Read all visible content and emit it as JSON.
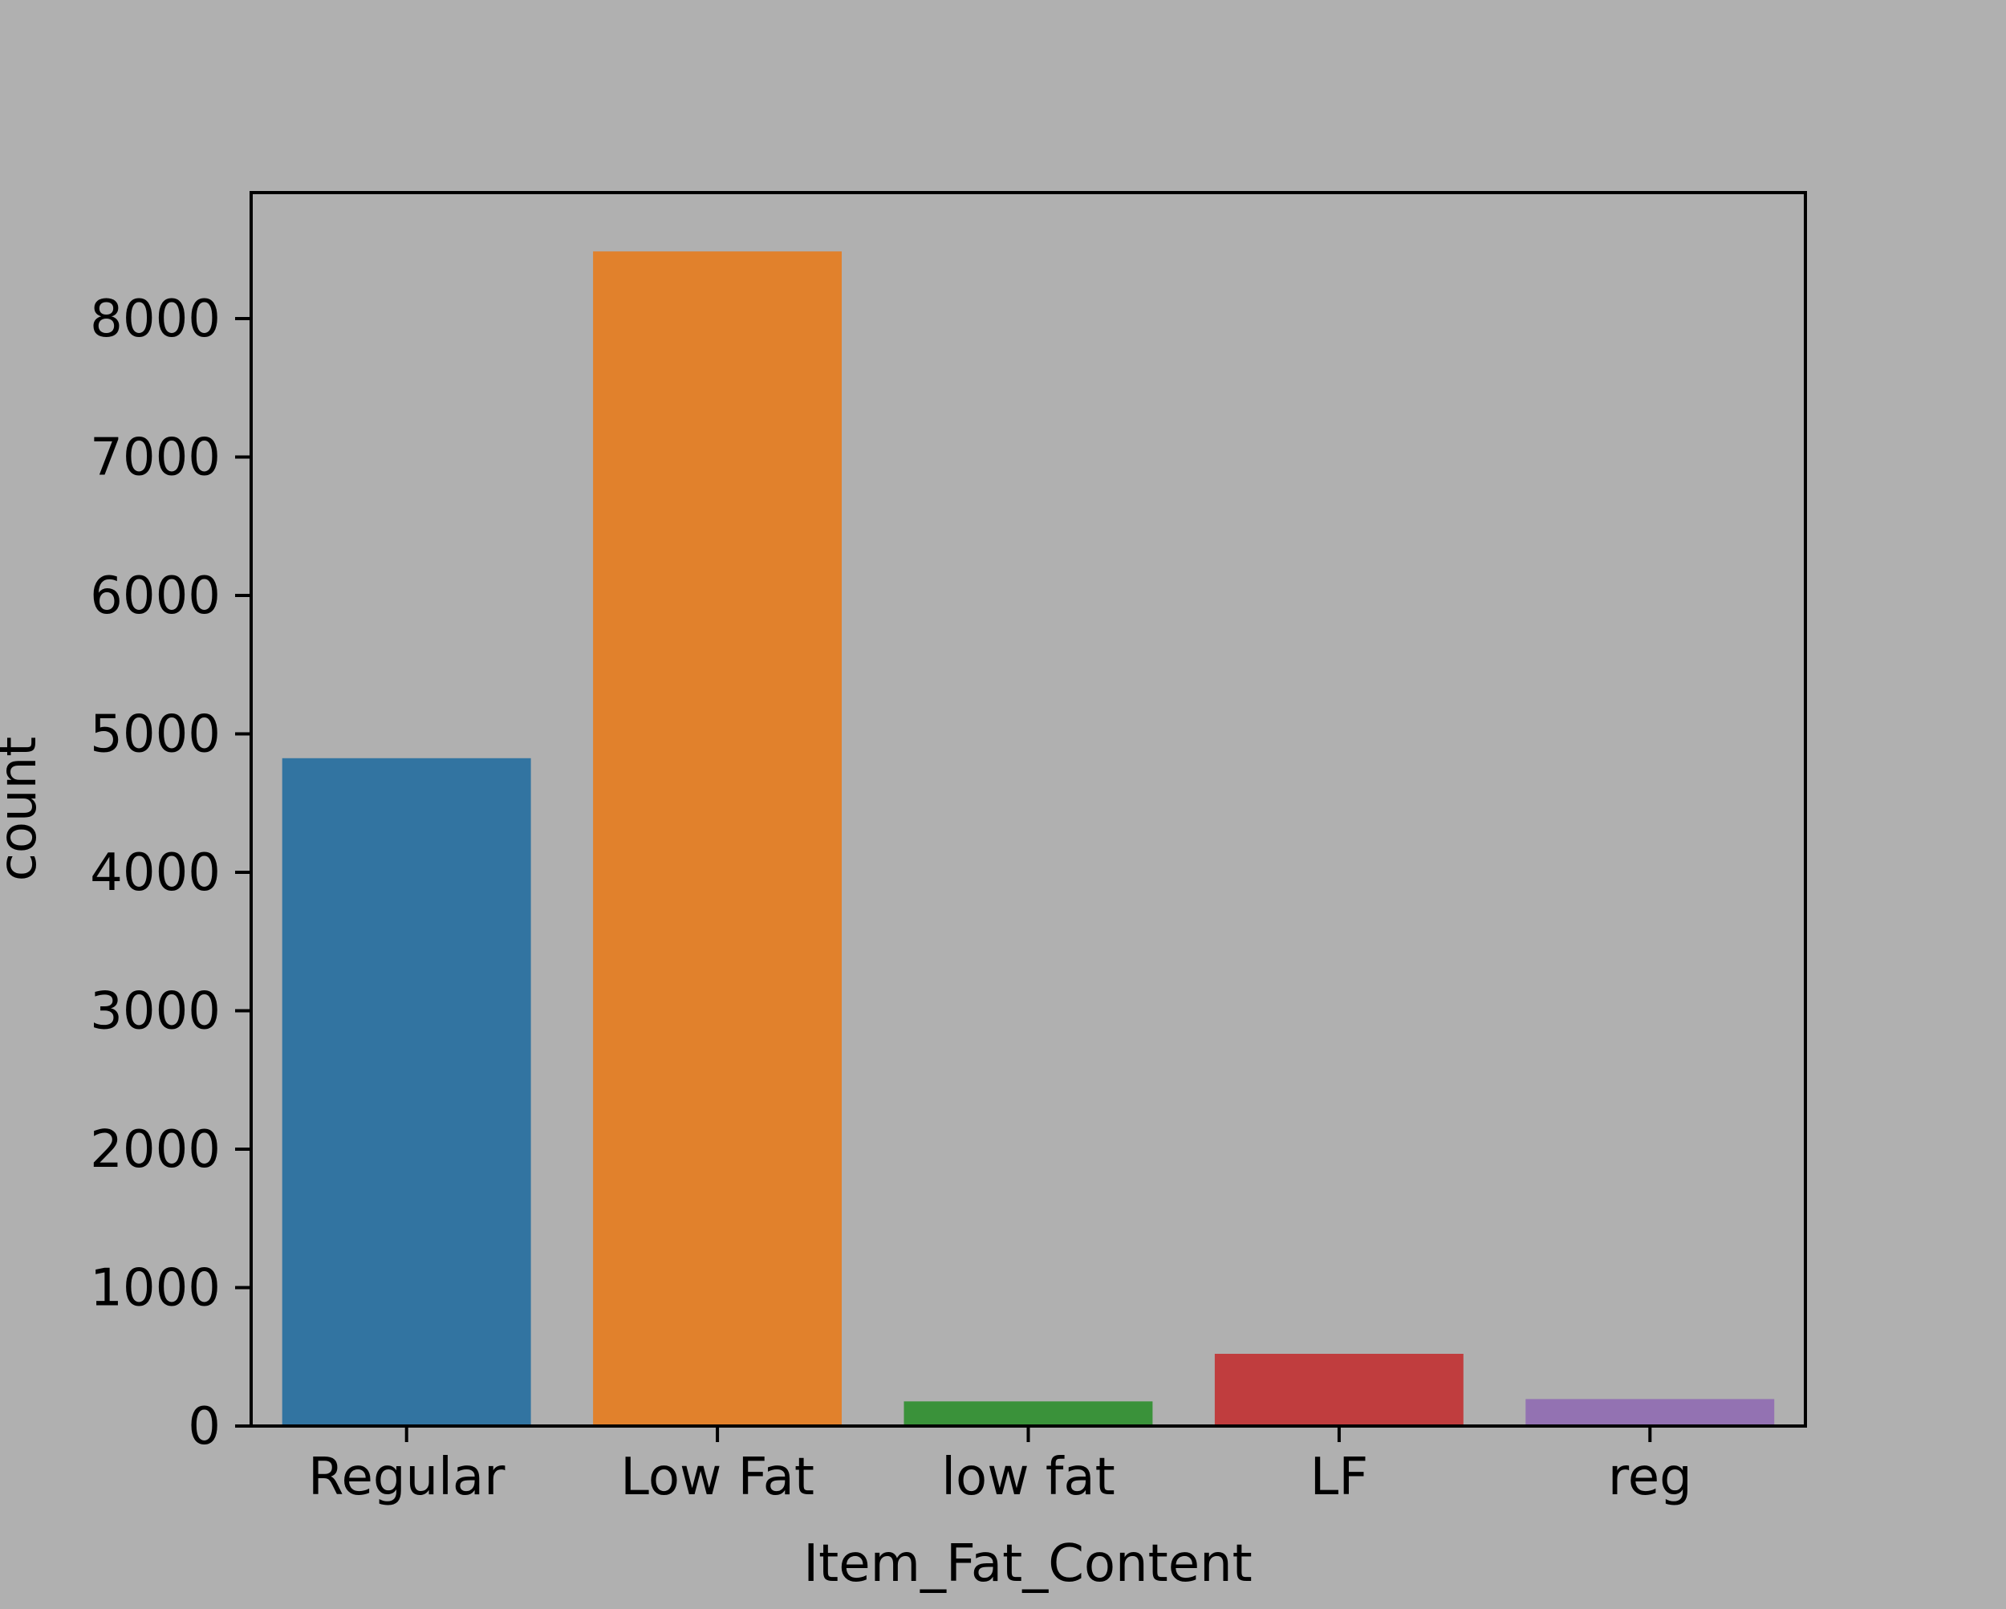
{
  "chart_data": {
    "type": "bar",
    "categories": [
      "Regular",
      "Low Fat",
      "low fat",
      "LF",
      "reg"
    ],
    "values": [
      4824,
      8485,
      178,
      522,
      195
    ],
    "colors": [
      "#3274a1",
      "#e1812c",
      "#3a923a",
      "#c03d3e",
      "#9372b2"
    ],
    "xlabel": "Item_Fat_Content",
    "ylabel": "count",
    "ylim": [
      0,
      8910
    ],
    "yticks": [
      0,
      1000,
      2000,
      3000,
      4000,
      5000,
      6000,
      7000,
      8000
    ],
    "ytick_labels": [
      "0",
      "1000",
      "2000",
      "3000",
      "4000",
      "5000",
      "6000",
      "7000",
      "8000"
    ],
    "grid": false,
    "background": "#b0b0b0"
  }
}
